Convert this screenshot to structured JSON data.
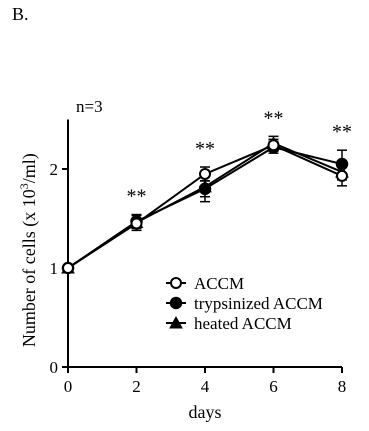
{
  "panel_label": "B.",
  "chart_data": {
    "type": "line",
    "xlabel": "days",
    "ylabel_parts": [
      "Number of cells (x 10",
      "3",
      "/ml)"
    ],
    "x": [
      0,
      2,
      4,
      6,
      8
    ],
    "xlim": [
      0,
      8
    ],
    "ylim": [
      0,
      2.5
    ],
    "xticks": [
      0,
      2,
      4,
      6,
      8
    ],
    "yticks": [
      0,
      1,
      2
    ],
    "grid": false,
    "legend_position": "bottom-right",
    "note": "n=3",
    "significance": [
      "",
      "**",
      "**",
      "**",
      "**"
    ],
    "series": [
      {
        "name": "ACCM",
        "marker": "circle-open",
        "values": [
          1.0,
          1.45,
          1.95,
          2.24,
          1.93
        ],
        "errors": [
          0,
          0.05,
          0.07,
          0.06,
          0.1
        ]
      },
      {
        "name": "trypsinized ACCM",
        "marker": "circle-filled",
        "values": [
          1.0,
          1.47,
          1.8,
          2.22,
          2.05
        ],
        "errors": [
          0,
          0.06,
          0.08,
          0.06,
          0.14
        ]
      },
      {
        "name": "heated ACCM",
        "marker": "triangle-filled",
        "values": [
          1.0,
          1.46,
          1.82,
          2.26,
          1.97
        ],
        "errors": [
          0,
          0.08,
          0.15,
          0.07,
          0.08
        ]
      }
    ]
  }
}
